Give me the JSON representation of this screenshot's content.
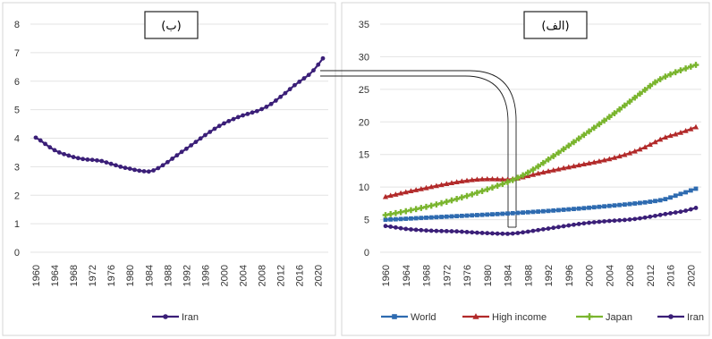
{
  "chart_data": [
    {
      "type": "line",
      "title": "(ب)",
      "x": [
        1960,
        1961,
        1962,
        1963,
        1964,
        1965,
        1966,
        1967,
        1968,
        1969,
        1970,
        1971,
        1972,
        1973,
        1974,
        1975,
        1976,
        1977,
        1978,
        1979,
        1980,
        1981,
        1982,
        1983,
        1984,
        1985,
        1986,
        1987,
        1988,
        1989,
        1990,
        1991,
        1992,
        1993,
        1994,
        1995,
        1996,
        1997,
        1998,
        1999,
        2000,
        2001,
        2002,
        2003,
        2004,
        2005,
        2006,
        2007,
        2008,
        2009,
        2010,
        2011,
        2012,
        2013,
        2014,
        2015,
        2016,
        2017,
        2018,
        2019,
        2020,
        2021
      ],
      "x_ticks": [
        "1960",
        "1964",
        "1968",
        "1972",
        "1976",
        "1980",
        "1984",
        "1988",
        "1992",
        "1996",
        "2000",
        "2004",
        "2008",
        "2012",
        "2016",
        "2020"
      ],
      "ylim": [
        0,
        8
      ],
      "y_ticks": [
        "0",
        "1",
        "2",
        "3",
        "4",
        "5",
        "6",
        "7",
        "8"
      ],
      "series": [
        {
          "name": "Iran",
          "color": "#3b1f78",
          "values": [
            4.02,
            3.92,
            3.8,
            3.68,
            3.58,
            3.5,
            3.44,
            3.39,
            3.34,
            3.3,
            3.27,
            3.25,
            3.24,
            3.22,
            3.2,
            3.15,
            3.1,
            3.05,
            3.0,
            2.96,
            2.93,
            2.89,
            2.86,
            2.84,
            2.83,
            2.87,
            2.95,
            3.05,
            3.16,
            3.28,
            3.4,
            3.52,
            3.63,
            3.75,
            3.87,
            3.99,
            4.11,
            4.22,
            4.33,
            4.43,
            4.52,
            4.6,
            4.67,
            4.74,
            4.8,
            4.85,
            4.9,
            4.95,
            5.02,
            5.1,
            5.2,
            5.32,
            5.45,
            5.58,
            5.72,
            5.86,
            5.98,
            6.1,
            6.22,
            6.38,
            6.58,
            6.8
          ]
        }
      ],
      "legend": "bottom",
      "grid": true
    },
    {
      "type": "line",
      "title": "(الف)",
      "x": [
        1960,
        1961,
        1962,
        1963,
        1964,
        1965,
        1966,
        1967,
        1968,
        1969,
        1970,
        1971,
        1972,
        1973,
        1974,
        1975,
        1976,
        1977,
        1978,
        1979,
        1980,
        1981,
        1982,
        1983,
        1984,
        1985,
        1986,
        1987,
        1988,
        1989,
        1990,
        1991,
        1992,
        1993,
        1994,
        1995,
        1996,
        1997,
        1998,
        1999,
        2000,
        2001,
        2002,
        2003,
        2004,
        2005,
        2006,
        2007,
        2008,
        2009,
        2010,
        2011,
        2012,
        2013,
        2014,
        2015,
        2016,
        2017,
        2018,
        2019,
        2020,
        2021
      ],
      "x_ticks": [
        "1960",
        "1964",
        "1968",
        "1972",
        "1976",
        "1980",
        "1984",
        "1988",
        "1992",
        "1996",
        "2000",
        "2004",
        "2008",
        "2012",
        "2016",
        "2020"
      ],
      "ylim": [
        0,
        35
      ],
      "y_ticks": [
        "0",
        "5",
        "10",
        "15",
        "20",
        "25",
        "30",
        "35"
      ],
      "series": [
        {
          "name": "World",
          "color": "#2e6bb0",
          "values": [
            5.0,
            5.03,
            5.06,
            5.1,
            5.14,
            5.18,
            5.22,
            5.26,
            5.3,
            5.34,
            5.38,
            5.42,
            5.46,
            5.5,
            5.54,
            5.58,
            5.62,
            5.66,
            5.7,
            5.74,
            5.78,
            5.82,
            5.86,
            5.9,
            5.94,
            5.99,
            6.04,
            6.09,
            6.14,
            6.19,
            6.24,
            6.29,
            6.34,
            6.4,
            6.46,
            6.52,
            6.58,
            6.64,
            6.7,
            6.76,
            6.83,
            6.9,
            6.97,
            7.04,
            7.11,
            7.18,
            7.25,
            7.32,
            7.4,
            7.48,
            7.56,
            7.65,
            7.75,
            7.86,
            7.98,
            8.15,
            8.4,
            8.68,
            8.95,
            9.2,
            9.48,
            9.75
          ]
        },
        {
          "name": "High income",
          "color": "#b22a2a",
          "values": [
            8.5,
            8.68,
            8.86,
            9.04,
            9.22,
            9.38,
            9.54,
            9.7,
            9.86,
            10.02,
            10.18,
            10.33,
            10.48,
            10.62,
            10.76,
            10.88,
            10.99,
            11.08,
            11.15,
            11.2,
            11.22,
            11.22,
            11.2,
            11.18,
            11.15,
            11.22,
            11.35,
            11.52,
            11.7,
            11.9,
            12.08,
            12.25,
            12.42,
            12.58,
            12.74,
            12.9,
            13.05,
            13.2,
            13.35,
            13.5,
            13.65,
            13.8,
            13.95,
            14.12,
            14.3,
            14.5,
            14.72,
            14.95,
            15.2,
            15.48,
            15.78,
            16.12,
            16.5,
            16.9,
            17.3,
            17.62,
            17.88,
            18.1,
            18.35,
            18.62,
            18.9,
            19.2
          ]
        },
        {
          "name": "Japan",
          "color": "#7ab52e",
          "values": [
            5.7,
            5.85,
            6.0,
            6.15,
            6.3,
            6.46,
            6.62,
            6.79,
            6.96,
            7.14,
            7.33,
            7.53,
            7.74,
            7.96,
            8.18,
            8.41,
            8.64,
            8.88,
            9.13,
            9.39,
            9.65,
            9.92,
            10.2,
            10.48,
            10.77,
            11.08,
            11.42,
            11.8,
            12.22,
            12.68,
            13.18,
            13.7,
            14.23,
            14.75,
            15.28,
            15.82,
            16.36,
            16.9,
            17.45,
            18.0,
            18.55,
            19.1,
            19.65,
            20.2,
            20.76,
            21.33,
            21.92,
            22.52,
            23.12,
            23.72,
            24.32,
            24.92,
            25.52,
            26.08,
            26.55,
            26.95,
            27.3,
            27.62,
            27.92,
            28.2,
            28.48,
            28.75
          ]
        },
        {
          "name": "Iran",
          "color": "#3b1f78",
          "values": [
            4.02,
            3.92,
            3.8,
            3.68,
            3.58,
            3.5,
            3.44,
            3.39,
            3.34,
            3.3,
            3.27,
            3.25,
            3.24,
            3.22,
            3.2,
            3.15,
            3.1,
            3.05,
            3.0,
            2.96,
            2.93,
            2.89,
            2.86,
            2.84,
            2.83,
            2.87,
            2.95,
            3.05,
            3.16,
            3.28,
            3.4,
            3.52,
            3.63,
            3.75,
            3.87,
            3.99,
            4.11,
            4.22,
            4.33,
            4.43,
            4.52,
            4.6,
            4.67,
            4.74,
            4.8,
            4.85,
            4.9,
            4.95,
            5.02,
            5.1,
            5.2,
            5.32,
            5.45,
            5.58,
            5.72,
            5.86,
            5.98,
            6.1,
            6.22,
            6.38,
            6.58,
            6.8
          ]
        }
      ],
      "legend": "bottom",
      "grid": true
    }
  ]
}
